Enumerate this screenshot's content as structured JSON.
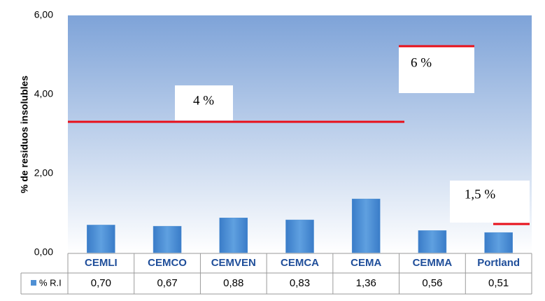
{
  "chart_data": {
    "type": "bar",
    "y_label": "% de residuos insolubles",
    "categories": [
      "CEMLI",
      "CEMCO",
      "CEMVEN",
      "CEMCA",
      "CEMA",
      "CEMMA",
      "Portland"
    ],
    "series": [
      {
        "name": "% R.I",
        "color": "#4f90d4",
        "values": [
          0.7,
          0.67,
          0.88,
          0.83,
          1.36,
          0.56,
          0.51
        ],
        "value_labels": [
          "0,70",
          "0,67",
          "0,88",
          "0,83",
          "1,36",
          "0,56",
          "0,51"
        ]
      }
    ],
    "ylim": [
      0,
      6
    ],
    "yticks": [
      {
        "value": 0,
        "label": "0,00"
      },
      {
        "value": 2,
        "label": "2,00"
      },
      {
        "value": 4,
        "label": "4,00"
      },
      {
        "value": 6,
        "label": "6,00"
      }
    ],
    "annotations": [
      "4 %",
      "6 %",
      "1,5 %"
    ],
    "grid": false
  }
}
